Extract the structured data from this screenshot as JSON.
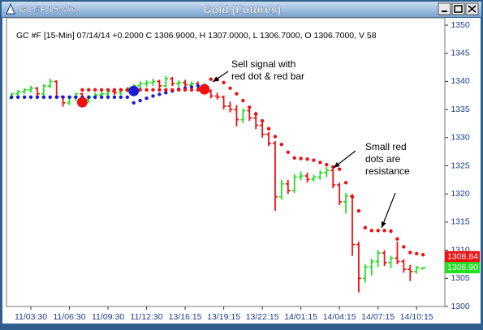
{
  "chart_data": {
    "type": "ohlc",
    "window_title": "GC #F 15-Min",
    "title": "Gold (Futures)",
    "header": "GC #F [15-Min] 07/14/14 +0.2000 C 1306.9000, H 1307.0000, L 1306.7000, O 1306.7000, V 58",
    "categories": [
      null,
      null,
      null,
      "11/03:30",
      null,
      null,
      null,
      null,
      null,
      "11/06:30",
      null,
      null,
      null,
      null,
      null,
      "11/09:30",
      null,
      null,
      null,
      null,
      null,
      "11/12:30",
      null,
      null,
      null,
      null,
      null,
      "13/16:15",
      null,
      null,
      null,
      null,
      null,
      "13/19:15",
      null,
      null,
      null,
      null,
      null,
      "13/22:15",
      null,
      null,
      null,
      null,
      null,
      "14/01:15",
      null,
      null,
      null,
      null,
      null,
      "14/04:15",
      null,
      null,
      null,
      null,
      null,
      "14/07:15",
      null,
      null,
      null,
      null,
      null,
      "14/10:15",
      null
    ],
    "ohlc": {
      "open": [
        1337,
        1337.8,
        1338.2,
        1338.5,
        1338.8,
        1337.8,
        1339.2,
        1340,
        1337.3,
        1336.2,
        1337.2,
        1337.8,
        1336.8,
        1337.2,
        1337.6,
        1337.8,
        1338.2,
        1338,
        1338.5,
        1338.8,
        1339.2,
        1339.6,
        1339.8,
        1340,
        1339.2,
        1340.5,
        1339.6,
        1339.8,
        1339.4,
        1339.6,
        1338.8,
        1338.2,
        1337.4,
        1337.2,
        1335.6,
        1335,
        1333.2,
        1334.8,
        1333.5,
        1332.2,
        1330.6,
        1329,
        1319.5,
        1321.8,
        1320.6,
        1323,
        1323.2,
        1322.6,
        1323,
        1323.8,
        1324.2,
        1321.6,
        1318.6,
        1319.6,
        1311,
        1305,
        1307,
        1308,
        1309.5,
        1307.8,
        1308.6,
        1308,
        1306.6,
        1306.2,
        1306.7
      ],
      "high": [
        1338,
        1338.5,
        1338.8,
        1339.2,
        1339,
        1339.5,
        1340.5,
        1340.2,
        1337.5,
        1337.5,
        1338,
        1338,
        1337.5,
        1338,
        1338.2,
        1338.5,
        1338.6,
        1338.8,
        1339,
        1339.5,
        1340,
        1340.2,
        1340.5,
        1340.3,
        1341,
        1340.8,
        1340.2,
        1340.3,
        1340,
        1340,
        1339.2,
        1338.6,
        1338,
        1337.5,
        1336.4,
        1335.8,
        1335.2,
        1335.4,
        1334.6,
        1332.8,
        1331,
        1329.4,
        1322.5,
        1322.5,
        1323.5,
        1324,
        1323.8,
        1323.4,
        1324.2,
        1324.8,
        1324.5,
        1322,
        1320.2,
        1320,
        1311.5,
        1307.5,
        1308.5,
        1310,
        1310,
        1309,
        1311.5,
        1308.4,
        1307.4,
        1307.2,
        1307
      ],
      "low": [
        1336.8,
        1337.5,
        1337.8,
        1338,
        1337.5,
        1337.5,
        1338.8,
        1337,
        1335.5,
        1335.8,
        1336.5,
        1336.5,
        1336.2,
        1336.8,
        1337,
        1337.2,
        1337.6,
        1337.6,
        1338,
        1338.2,
        1338.6,
        1339,
        1339.2,
        1338.8,
        1339,
        1339.2,
        1339,
        1339,
        1338.8,
        1338.5,
        1337.8,
        1337,
        1336.8,
        1335,
        1334.5,
        1332,
        1332.6,
        1333,
        1331.5,
        1330,
        1328.5,
        1317,
        1319,
        1320,
        1320.2,
        1322.4,
        1322,
        1322.2,
        1322.5,
        1323,
        1321,
        1318,
        1316.5,
        1309,
        1302.5,
        1304.2,
        1305.5,
        1307,
        1307.2,
        1306.8,
        1307.5,
        1306,
        1304.5,
        1305.8,
        1306.7
      ],
      "close": [
        1337.8,
        1338.2,
        1338.5,
        1338.8,
        1337.8,
        1339.2,
        1340,
        1337.3,
        1336.2,
        1337.2,
        1337.8,
        1336.8,
        1337.2,
        1337.6,
        1337.8,
        1338.2,
        1338,
        1338.5,
        1338.8,
        1339.2,
        1339.6,
        1339.8,
        1340,
        1339.2,
        1340.5,
        1339.6,
        1339.8,
        1339.4,
        1339.6,
        1338.8,
        1338.2,
        1337.4,
        1337.2,
        1335.6,
        1335,
        1333.2,
        1334.8,
        1333.5,
        1332.2,
        1330.6,
        1329,
        1319.5,
        1321.8,
        1320.6,
        1323,
        1323.2,
        1322.6,
        1323,
        1323.8,
        1324.2,
        1321.6,
        1318.6,
        1319.6,
        1311,
        1305,
        1307,
        1308,
        1309.5,
        1307.8,
        1308.6,
        1308,
        1306.6,
        1306.2,
        1306.9,
        1306.9
      ]
    },
    "up_color": "#22e022",
    "down_color": "#ee1111",
    "dots": [
      {
        "color": "#1c1cd8",
        "values": [
          1337.2,
          1337.2,
          1337.2,
          1337.2,
          1337.2,
          1337.2,
          1337.2,
          1337.2,
          1337.2,
          1337.2,
          1337.2,
          1337.2,
          1337.2,
          1337.2,
          1337.2,
          1337.2,
          1337.2,
          1337.2,
          1337.2,
          1336.2,
          1336.6,
          1337,
          1337.4,
          1337.7,
          1338,
          1338.3,
          1338.6,
          1338.8,
          1339,
          1339.2,
          1339.3,
          null,
          null,
          null,
          null,
          null,
          null,
          null,
          null,
          null,
          null,
          null,
          null,
          null,
          null,
          null,
          null,
          null,
          null,
          null,
          null,
          null,
          null,
          null,
          null,
          null,
          null,
          null,
          null,
          null,
          null,
          null,
          null,
          null,
          null
        ]
      },
      {
        "color": "#ee1111",
        "values": [
          null,
          null,
          null,
          null,
          null,
          null,
          null,
          null,
          null,
          null,
          null,
          1338.5,
          1338.5,
          1338.5,
          1338.5,
          1338.5,
          1338.5,
          1338.5,
          1338.5,
          1338.5,
          1338.5,
          1338.5,
          1338.5,
          1338.5,
          1338.5,
          1338.5,
          1338.5,
          1338.5,
          1338.5,
          1338.5,
          1338.5,
          1340.4,
          1340.3,
          1339.8,
          1338.8,
          1337.8,
          1336.6,
          1335.4,
          1334.2,
          1333,
          1331.6,
          1330.2,
          1328.8,
          1327.4,
          1326.4,
          1326.3,
          1326.2,
          1326,
          1325.6,
          1325.2,
          1324.8,
          1324.4,
          1322,
          1319.5,
          1317,
          1314,
          1313.5,
          1313.5,
          1313.5,
          1313.4,
          1312,
          1310.6,
          1309.6,
          1309.4,
          1309.2
        ]
      }
    ],
    "signals": [
      {
        "color": "#ee1111",
        "values": [
          null,
          null,
          null,
          null,
          null,
          null,
          null,
          null,
          null,
          null,
          null,
          1336.3,
          null,
          null,
          null,
          null,
          null,
          null,
          null,
          null,
          null,
          null,
          null,
          null,
          null,
          null,
          null,
          null,
          null,
          null,
          1338.6,
          null,
          null,
          null,
          null,
          null,
          null,
          null,
          null,
          null,
          null,
          null,
          null,
          null,
          null,
          null,
          null,
          null,
          null,
          null,
          null,
          null,
          null,
          null,
          null,
          null,
          null,
          null,
          null,
          null,
          null,
          null,
          null,
          null,
          null
        ]
      },
      {
        "color": "#1c1cd8",
        "values": [
          null,
          null,
          null,
          null,
          null,
          null,
          null,
          null,
          null,
          null,
          null,
          null,
          null,
          null,
          null,
          null,
          null,
          null,
          null,
          1338.3,
          null,
          null,
          null,
          null,
          null,
          null,
          null,
          null,
          null,
          null,
          null,
          null,
          null,
          null,
          null,
          null,
          null,
          null,
          null,
          null,
          null,
          null,
          null,
          null,
          null,
          null,
          null,
          null,
          null,
          null,
          null,
          null,
          null,
          null,
          null,
          null,
          null,
          null,
          null,
          null,
          null,
          null,
          null,
          null,
          null
        ]
      }
    ],
    "annotations": [
      {
        "lines": [
          "Sell signal with",
          "red dot & red bar"
        ]
      },
      {
        "lines": [
          "Small red",
          "dots are",
          "resistance"
        ]
      }
    ],
    "price_tags": [
      {
        "value": 1308.84,
        "label": "1308.84",
        "color": "#ee1111"
      },
      {
        "value": 1306.9,
        "label": "1306.90",
        "color": "#22e022"
      }
    ],
    "ylim": [
      1300,
      1351.3
    ],
    "yticks": [
      1300,
      1305,
      1310,
      1315,
      1320,
      1325,
      1330,
      1335,
      1340,
      1345,
      1350
    ]
  }
}
